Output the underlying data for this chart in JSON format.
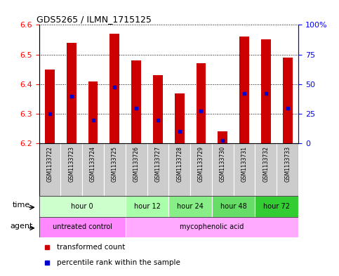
{
  "title": "GDS5265 / ILMN_1715125",
  "samples": [
    "GSM1133722",
    "GSM1133723",
    "GSM1133724",
    "GSM1133725",
    "GSM1133726",
    "GSM1133727",
    "GSM1133728",
    "GSM1133729",
    "GSM1133730",
    "GSM1133731",
    "GSM1133732",
    "GSM1133733"
  ],
  "bar_tops": [
    6.45,
    6.54,
    6.41,
    6.57,
    6.48,
    6.43,
    6.37,
    6.47,
    6.24,
    6.56,
    6.55,
    6.49
  ],
  "bar_bottoms": [
    6.2,
    6.2,
    6.2,
    6.2,
    6.2,
    6.2,
    6.2,
    6.2,
    6.2,
    6.2,
    6.2,
    6.2
  ],
  "percentile_values": [
    6.3,
    6.36,
    6.28,
    6.39,
    6.32,
    6.28,
    6.24,
    6.31,
    6.21,
    6.37,
    6.37,
    6.32
  ],
  "ylim": [
    6.2,
    6.6
  ],
  "yticks_left": [
    6.2,
    6.3,
    6.4,
    6.5,
    6.6
  ],
  "yticks_right": [
    0,
    25,
    50,
    75,
    100
  ],
  "bar_color": "#cc0000",
  "percentile_color": "#0000cc",
  "time_groups": [
    {
      "label": "hour 0",
      "start": 0,
      "end": 4,
      "color": "#ccffcc"
    },
    {
      "label": "hour 12",
      "start": 4,
      "end": 6,
      "color": "#aaffaa"
    },
    {
      "label": "hour 24",
      "start": 6,
      "end": 8,
      "color": "#88ee88"
    },
    {
      "label": "hour 48",
      "start": 8,
      "end": 10,
      "color": "#66dd66"
    },
    {
      "label": "hour 72",
      "start": 10,
      "end": 12,
      "color": "#33cc33"
    }
  ],
  "agent_groups": [
    {
      "label": "untreated control",
      "start": 0,
      "end": 4,
      "color": "#ff88ff"
    },
    {
      "label": "mycophenolic acid",
      "start": 4,
      "end": 12,
      "color": "#ffaaff"
    }
  ],
  "legend_items": [
    {
      "label": "transformed count",
      "color": "#cc0000"
    },
    {
      "label": "percentile rank within the sample",
      "color": "#0000cc"
    }
  ],
  "xlabel_time": "time",
  "xlabel_agent": "agent",
  "background_color": "#ffffff",
  "plot_bg_color": "#ffffff",
  "bar_width": 0.45,
  "xticklabel_bg": "#cccccc"
}
